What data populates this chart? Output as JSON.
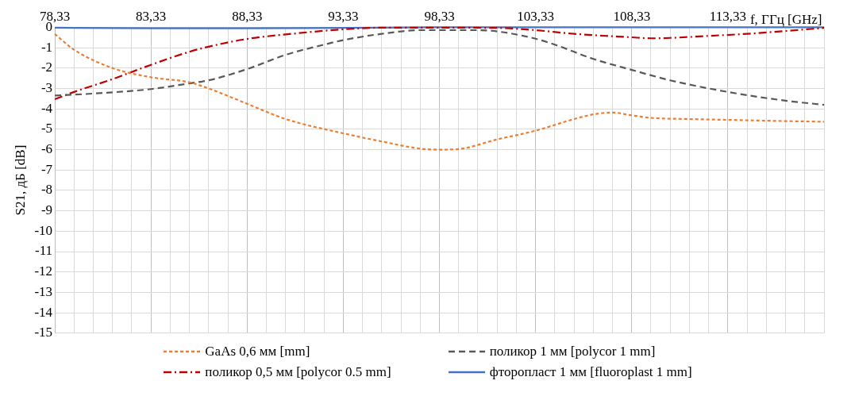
{
  "chart_data": {
    "type": "line",
    "xlabel": "f, ГГц [GHz]",
    "ylabel": "S21, дБ [dB]",
    "xlim": [
      78.33,
      118.33
    ],
    "ylim": [
      -15,
      0
    ],
    "xticks": [
      {
        "value": 78.33,
        "label": "78,33"
      },
      {
        "value": 79.33,
        "label": null
      },
      {
        "value": 80.33,
        "label": null
      },
      {
        "value": 81.33,
        "label": null
      },
      {
        "value": 82.33,
        "label": null
      },
      {
        "value": 83.33,
        "label": "83,33"
      },
      {
        "value": 84.33,
        "label": null
      },
      {
        "value": 85.33,
        "label": null
      },
      {
        "value": 86.33,
        "label": null
      },
      {
        "value": 87.33,
        "label": null
      },
      {
        "value": 88.33,
        "label": "88,33"
      },
      {
        "value": 89.33,
        "label": null
      },
      {
        "value": 90.33,
        "label": null
      },
      {
        "value": 91.33,
        "label": null
      },
      {
        "value": 92.33,
        "label": null
      },
      {
        "value": 93.33,
        "label": "93,33"
      },
      {
        "value": 94.33,
        "label": null
      },
      {
        "value": 95.33,
        "label": null
      },
      {
        "value": 96.33,
        "label": null
      },
      {
        "value": 97.33,
        "label": null
      },
      {
        "value": 98.33,
        "label": "98,33"
      },
      {
        "value": 99.33,
        "label": null
      },
      {
        "value": 100.33,
        "label": null
      },
      {
        "value": 101.33,
        "label": null
      },
      {
        "value": 102.33,
        "label": null
      },
      {
        "value": 103.33,
        "label": "103,33"
      },
      {
        "value": 104.33,
        "label": null
      },
      {
        "value": 105.33,
        "label": null
      },
      {
        "value": 106.33,
        "label": null
      },
      {
        "value": 107.33,
        "label": null
      },
      {
        "value": 108.33,
        "label": "108,33"
      },
      {
        "value": 109.33,
        "label": null
      },
      {
        "value": 110.33,
        "label": null
      },
      {
        "value": 111.33,
        "label": null
      },
      {
        "value": 112.33,
        "label": null
      },
      {
        "value": 113.33,
        "label": "113,33"
      },
      {
        "value": 114.33,
        "label": null
      },
      {
        "value": 115.33,
        "label": null
      },
      {
        "value": 116.33,
        "label": null
      },
      {
        "value": 117.33,
        "label": null
      },
      {
        "value": 118.33,
        "label": null
      }
    ],
    "yticks": [
      0,
      -1,
      -2,
      -3,
      -4,
      -5,
      -6,
      -7,
      -8,
      -9,
      -10,
      -11,
      -12,
      -13,
      -14,
      -15
    ],
    "grid": true,
    "legend": "bottom",
    "marker": "none",
    "series": [
      {
        "name": "GaAs 0,6 мм [mm]",
        "color": "#ed7d31",
        "line_style": "dotted",
        "x": [
          78.33,
          79.33,
          81.33,
          83.33,
          85.33,
          86.33,
          88.33,
          90.33,
          93.33,
          95.33,
          97.33,
          98.33,
          99.33,
          101.33,
          103.33,
          105.33,
          106.33,
          107.33,
          108.33,
          109.33,
          111.33,
          113.33,
          116.33,
          118.33
        ],
        "values": [
          -0.33,
          -1.1,
          -2.0,
          -2.45,
          -2.7,
          -3.0,
          -3.75,
          -4.5,
          -5.2,
          -5.6,
          -5.95,
          -6.0,
          -5.97,
          -5.5,
          -5.07,
          -4.5,
          -4.27,
          -4.18,
          -4.32,
          -4.44,
          -4.5,
          -4.54,
          -4.6,
          -4.63
        ]
      },
      {
        "name": "поликор 1 мм [polycor 1 mm]",
        "color": "#595959",
        "line_style": "dashed",
        "x": [
          78.33,
          80.33,
          83.33,
          85.33,
          86.33,
          88.33,
          90.33,
          92.33,
          93.33,
          95.33,
          97.33,
          98.33,
          100.33,
          101.33,
          103.33,
          104.33,
          106.33,
          108.33,
          110.33,
          113.33,
          116.33,
          118.33
        ],
        "values": [
          -3.35,
          -3.25,
          -3.03,
          -2.75,
          -2.6,
          -2.05,
          -1.35,
          -0.85,
          -0.63,
          -0.32,
          -0.14,
          -0.14,
          -0.14,
          -0.2,
          -0.56,
          -0.85,
          -1.55,
          -2.09,
          -2.6,
          -3.17,
          -3.6,
          -3.8
        ]
      },
      {
        "name": "поликор 0,5 мм [polycor 0.5 mm]",
        "color": "#c00000",
        "line_style": "dashdot",
        "x": [
          78.33,
          79.33,
          81.33,
          83.33,
          85.33,
          86.33,
          88.33,
          90.33,
          93.33,
          95.33,
          98.33,
          101.33,
          103.33,
          105.33,
          108.33,
          109.33,
          110.33,
          112.33,
          114.33,
          116.33,
          118.33
        ],
        "values": [
          -3.53,
          -3.17,
          -2.54,
          -1.84,
          -1.2,
          -0.95,
          -0.57,
          -0.35,
          -0.1,
          -0.02,
          -0.02,
          -0.03,
          -0.14,
          -0.32,
          -0.49,
          -0.54,
          -0.52,
          -0.42,
          -0.32,
          -0.18,
          -0.03
        ]
      },
      {
        "name": "фторопласт 1 мм [fluoroplast 1 mm]",
        "color": "#4472c4",
        "line_style": "solid",
        "x": [
          78.33,
          83.33,
          88.33,
          93.33,
          98.33,
          103.33,
          108.33,
          113.33,
          118.33
        ],
        "values": [
          -0.02,
          -0.05,
          -0.05,
          -0.03,
          0,
          0,
          0,
          0,
          0
        ]
      }
    ]
  }
}
